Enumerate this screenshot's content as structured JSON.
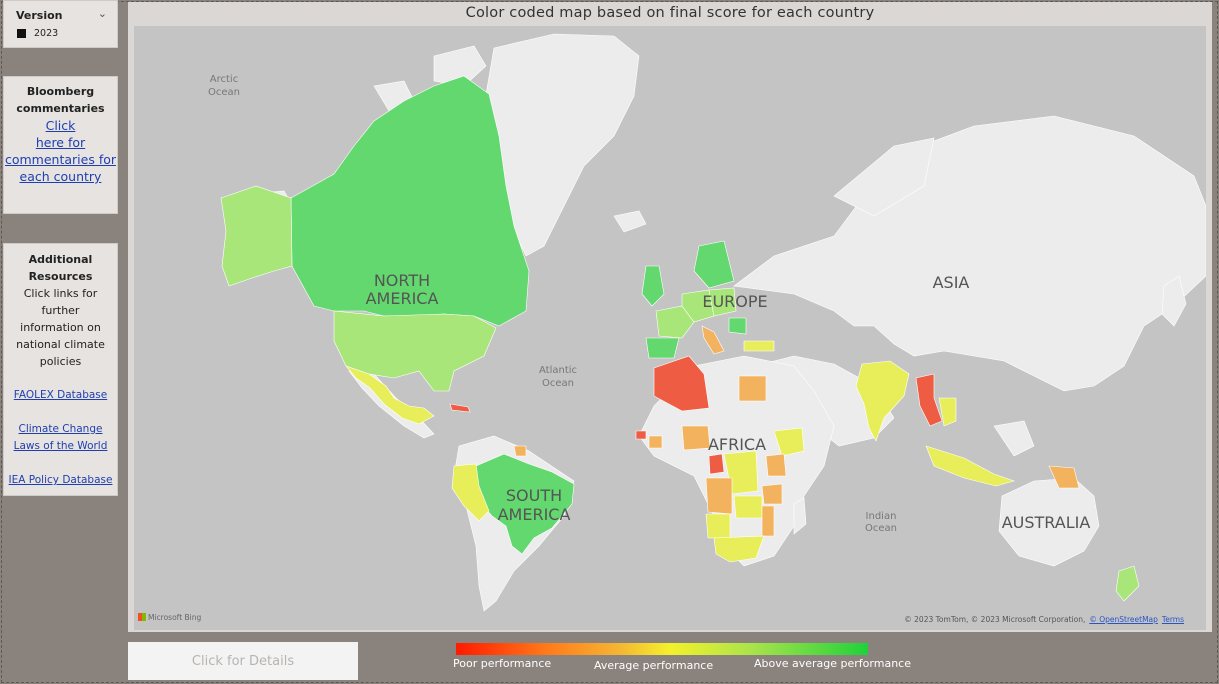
{
  "version_slicer": {
    "label": "Version",
    "value": "2023",
    "checked": true
  },
  "bloomberg": {
    "title_line1": "Bloomberg",
    "title_line2": "commentaries",
    "link_line1": "Click",
    "link_line2": "here for",
    "link_line3": "commentaries for",
    "link_line4": "each country"
  },
  "resources": {
    "title_line1": "Additional",
    "title_line2": "Resources",
    "desc_line1": "Click links for further",
    "desc_line2": "information on",
    "desc_line3": "national climate",
    "desc_line4": "policies",
    "links": [
      {
        "line1": "FAOLEX Database",
        "line2": ""
      },
      {
        "line1": "Climate Change",
        "line2": "Laws of the World"
      },
      {
        "line1": "IEA Policy Database",
        "line2": ""
      }
    ]
  },
  "map": {
    "title": "Color coded map based on final score for each country",
    "ocean_labels": {
      "arctic_1": "Arctic",
      "arctic_2": "Ocean",
      "atlantic_1": "Atlantic",
      "atlantic_2": "Ocean",
      "indian_1": "Indian",
      "indian_2": "Ocean"
    },
    "continent_labels": {
      "north_america_1": "NORTH",
      "north_america_2": "AMERICA",
      "south_america_1": "SOUTH",
      "south_america_2": "AMERICA",
      "europe": "EUROPE",
      "africa": "AFRICA",
      "asia": "ASIA",
      "australia": "AUSTRALIA"
    },
    "provider": "Microsoft Bing",
    "attribution": "© 2023 TomTom, © 2023 Microsoft Corporation,",
    "osm_link": "© OpenStreetMap",
    "terms_link": "Terms",
    "colors": {
      "water": "#c4c4c4",
      "land": "#ececec",
      "above_average": "#62d86e",
      "good": "#a9e67a",
      "average": "#e8ee5a",
      "below_average": "#f3b25d",
      "poor": "#ee5c44"
    }
  },
  "details_button": {
    "label": "Click for Details"
  },
  "legend": {
    "poor": "Poor performance",
    "average": "Average performance",
    "above": "Above average performance"
  }
}
